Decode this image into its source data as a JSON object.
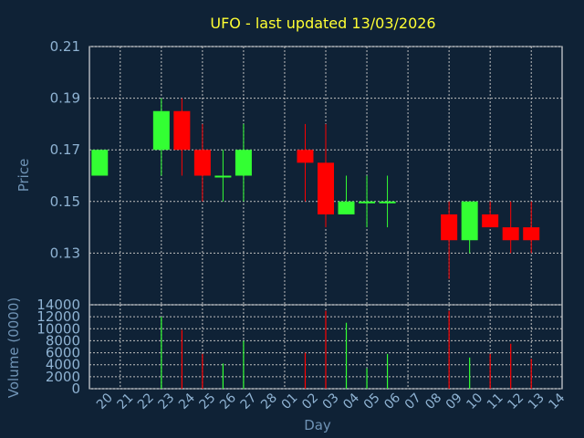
{
  "chart_data": [
    {
      "type": "candlestick",
      "title": "UFO - last updated 13/03/2026",
      "ylabel": "Price",
      "ylim": [
        0.11,
        0.21
      ],
      "yticks": [
        "0.13",
        "0.15",
        "0.17",
        "0.19",
        "0.21"
      ],
      "grid": true,
      "colors": {
        "up": "#33ff33",
        "down": "#ff0000",
        "background": "#0f2236",
        "plot": "#ffffff",
        "grid": "#c0c0c0",
        "title": "#ffff33"
      },
      "candles": [
        {
          "day": "20",
          "open": 0.16,
          "high": 0.17,
          "low": 0.16,
          "close": 0.17
        },
        {
          "day": "23",
          "open": 0.17,
          "high": 0.19,
          "low": 0.16,
          "close": 0.185
        },
        {
          "day": "24",
          "open": 0.185,
          "high": 0.19,
          "low": 0.16,
          "close": 0.17
        },
        {
          "day": "25",
          "open": 0.17,
          "high": 0.18,
          "low": 0.15,
          "close": 0.16
        },
        {
          "day": "26",
          "open": 0.16,
          "high": 0.17,
          "low": 0.15,
          "close": 0.16
        },
        {
          "day": "27",
          "open": 0.16,
          "high": 0.18,
          "low": 0.15,
          "close": 0.17
        },
        {
          "day": "02",
          "open": 0.17,
          "high": 0.18,
          "low": 0.15,
          "close": 0.165
        },
        {
          "day": "03",
          "open": 0.165,
          "high": 0.18,
          "low": 0.14,
          "close": 0.145
        },
        {
          "day": "04",
          "open": 0.145,
          "high": 0.16,
          "low": 0.145,
          "close": 0.15
        },
        {
          "day": "05",
          "open": 0.15,
          "high": 0.16,
          "low": 0.14,
          "close": 0.15
        },
        {
          "day": "06",
          "open": 0.15,
          "high": 0.16,
          "low": 0.14,
          "close": 0.15
        },
        {
          "day": "09",
          "open": 0.145,
          "high": 0.15,
          "low": 0.12,
          "close": 0.135
        },
        {
          "day": "10",
          "open": 0.135,
          "high": 0.15,
          "low": 0.13,
          "close": 0.15
        },
        {
          "day": "11",
          "open": 0.145,
          "high": 0.15,
          "low": 0.14,
          "close": 0.14
        },
        {
          "day": "12",
          "open": 0.14,
          "high": 0.15,
          "low": 0.13,
          "close": 0.135
        },
        {
          "day": "13",
          "open": 0.14,
          "high": 0.15,
          "low": 0.13,
          "close": 0.135
        }
      ]
    },
    {
      "type": "bar",
      "xlabel": "Day",
      "ylabel": "Volume (0000)",
      "ylim": [
        0,
        14000
      ],
      "yticks": [
        "0",
        "2000",
        "4000",
        "6000",
        "8000",
        "10000",
        "12000",
        "14000"
      ],
      "categories": [
        "20",
        "21",
        "22",
        "23",
        "24",
        "25",
        "26",
        "27",
        "28",
        "01",
        "02",
        "03",
        "04",
        "05",
        "06",
        "07",
        "08",
        "09",
        "10",
        "11",
        "12",
        "13",
        "14"
      ],
      "bars": [
        {
          "day": "23",
          "value": 12000,
          "dir": "up"
        },
        {
          "day": "24",
          "value": 9800,
          "dir": "down"
        },
        {
          "day": "25",
          "value": 5800,
          "dir": "down"
        },
        {
          "day": "26",
          "value": 4200,
          "dir": "up"
        },
        {
          "day": "27",
          "value": 8000,
          "dir": "up"
        },
        {
          "day": "02",
          "value": 6000,
          "dir": "down"
        },
        {
          "day": "03",
          "value": 13000,
          "dir": "down"
        },
        {
          "day": "04",
          "value": 11000,
          "dir": "up"
        },
        {
          "day": "05",
          "value": 3400,
          "dir": "up"
        },
        {
          "day": "06",
          "value": 5800,
          "dir": "up"
        },
        {
          "day": "09",
          "value": 13000,
          "dir": "down"
        },
        {
          "day": "10",
          "value": 5200,
          "dir": "up"
        },
        {
          "day": "11",
          "value": 5800,
          "dir": "down"
        },
        {
          "day": "12",
          "value": 7500,
          "dir": "down"
        },
        {
          "day": "13",
          "value": 5000,
          "dir": "down"
        }
      ]
    }
  ]
}
